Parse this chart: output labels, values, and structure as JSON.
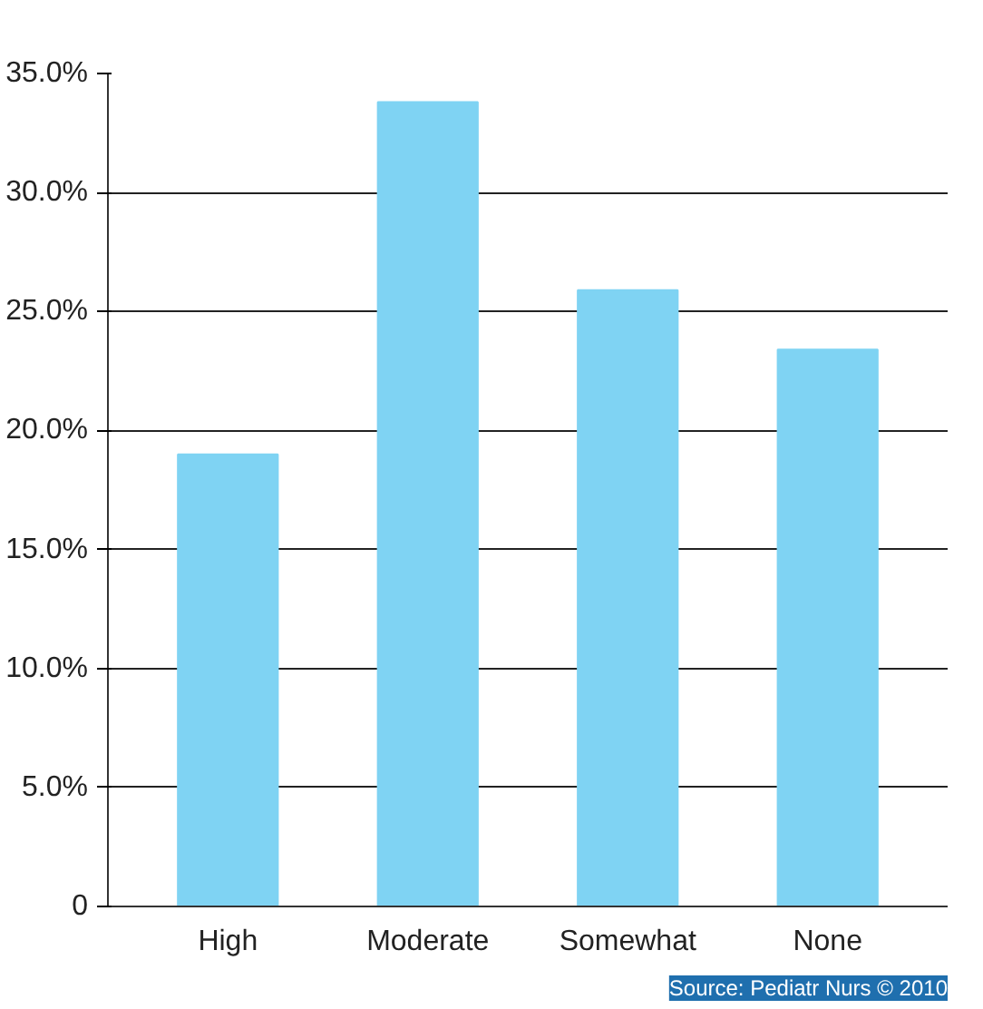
{
  "chart_data": {
    "type": "bar",
    "categories": [
      "High",
      "Moderate",
      "Somewhat",
      "None"
    ],
    "values": [
      19.0,
      33.8,
      25.9,
      23.4
    ],
    "color": "#7fd3f3",
    "ylim": [
      0,
      35
    ],
    "yticks": [
      {
        "value": 0,
        "label": "0"
      },
      {
        "value": 5,
        "label": "5.0%"
      },
      {
        "value": 10,
        "label": "10.0%"
      },
      {
        "value": 15,
        "label": "15.0%"
      },
      {
        "value": 20,
        "label": "20.0%"
      },
      {
        "value": 25,
        "label": "25.0%"
      },
      {
        "value": 30,
        "label": "30.0%"
      },
      {
        "value": 35,
        "label": "35.0%"
      }
    ],
    "grid": "y",
    "annotations": [
      "Source: Pediatr Nurs © 2010"
    ]
  }
}
